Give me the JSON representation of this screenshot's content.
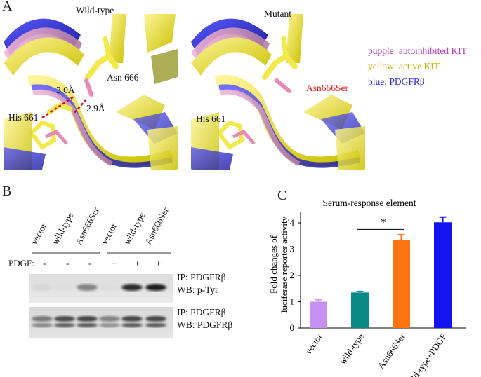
{
  "panelA": {
    "letter": "A",
    "wild_title": "Wild-type",
    "mutant_title": "Mutant",
    "wild_labels": {
      "distance1": "3.0Å",
      "distance2": "2.9Å",
      "residue_top": "Asn 666",
      "residue_left": "His 661"
    },
    "mutant_labels": {
      "mutation": "Asn666Ser",
      "residue_left": "His 661"
    },
    "legend": [
      {
        "text": "pupple: autoinhibited KIT",
        "color": "#b23cc0"
      },
      {
        "text": "yellow: active KIT",
        "color": "#c8b400"
      },
      {
        "text": "blue: PDGFRβ",
        "color": "#2a2ad8"
      }
    ],
    "colors": {
      "mutation_label": "#e0201a",
      "hbond": "#c0161a"
    }
  },
  "panelB": {
    "letter": "B",
    "lanes": [
      "vector",
      "wild-type",
      "Asn666Ser",
      "vector",
      "wild-type",
      "Asn666Ser"
    ],
    "pdgf_label": "PDGF:",
    "pdgf_signs": [
      "-",
      "-",
      "-",
      "+",
      "+",
      "+"
    ],
    "blot1": {
      "ip": "IP:  PDGFRβ",
      "wb": "WB: p-Tyr",
      "intensities": [
        0.18,
        0.15,
        0.55,
        0.15,
        0.95,
        1.0
      ]
    },
    "blot2": {
      "ip": "IP: PDGFRβ",
      "wb": "WB: PDGFRβ",
      "intensities": [
        0.6,
        0.8,
        0.82,
        0.55,
        0.82,
        0.82
      ]
    }
  },
  "panelC": {
    "letter": "C",
    "chart_data": {
      "type": "bar",
      "title": "Serum-response element",
      "ylabel": "Fold changes of luciferase reporter activity",
      "categories": [
        "vector",
        "wild-type",
        "Asn666Ser",
        "wild-type+PDGF"
      ],
      "values": [
        1.0,
        1.35,
        3.35,
        4.02
      ],
      "errors": [
        0.08,
        0.04,
        0.2,
        0.2
      ],
      "colors": [
        "#c890f0",
        "#0a8a86",
        "#ff7410",
        "#1414f0"
      ],
      "ylim": [
        0,
        4.4
      ],
      "yticks": [
        "0",
        "1",
        "2",
        "3",
        "4"
      ],
      "significance": "*",
      "grid": false
    }
  }
}
